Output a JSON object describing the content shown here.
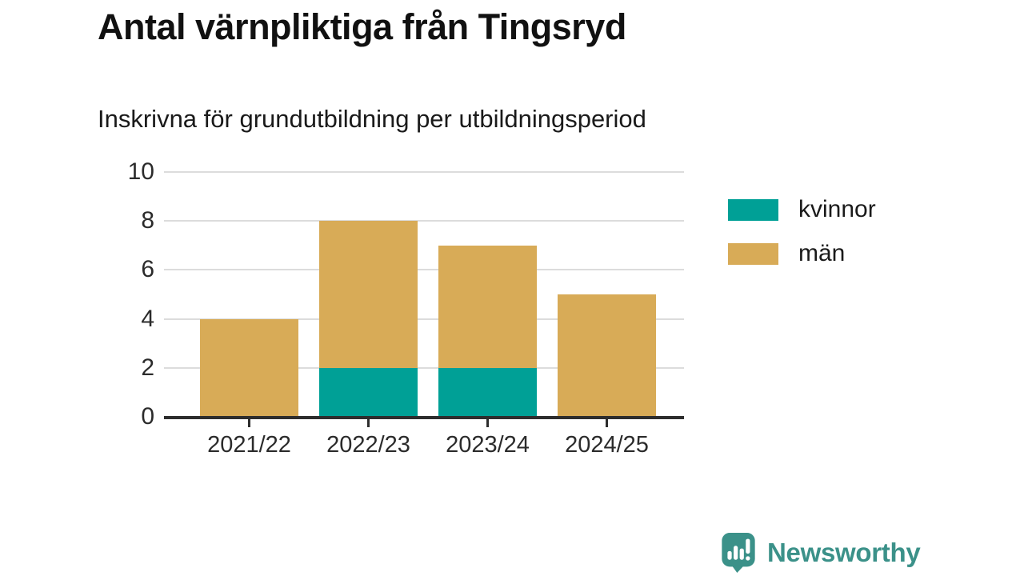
{
  "header": {
    "title": "Antal värnpliktiga från Tingsryd",
    "subtitle": "Inskrivna för grundutbildning per utbildningsperiod"
  },
  "chart_data": {
    "type": "bar",
    "stacked": true,
    "title": "Antal värnpliktiga från Tingsryd",
    "subtitle": "Inskrivna för grundutbildning per utbildningsperiod",
    "categories": [
      "2021/22",
      "2022/23",
      "2023/24",
      "2024/25"
    ],
    "series": [
      {
        "name": "kvinnor",
        "color": "#00a096",
        "values": [
          0,
          2,
          2,
          0
        ]
      },
      {
        "name": "män",
        "color": "#d8ab57",
        "values": [
          4,
          6,
          5,
          5
        ]
      }
    ],
    "totals": [
      4,
      8,
      7,
      5
    ],
    "xlabel": "",
    "ylabel": "",
    "ylim": [
      0,
      10
    ],
    "ytick_step": 2,
    "yticks": [
      0,
      2,
      4,
      6,
      8,
      10
    ],
    "grid": true,
    "gridline_color": "#dcdcdc",
    "axis_color": "#2d2d2d",
    "legend_position": "right"
  },
  "legend": {
    "items": [
      {
        "label": "kvinnor",
        "color": "#00a096",
        "icon": "legend-swatch-kvinnor"
      },
      {
        "label": "män",
        "color": "#d8ab57",
        "icon": "legend-swatch-man"
      }
    ]
  },
  "footer": {
    "brand": "Newsworthy",
    "brand_color": "#3b9189",
    "logo_icon": "newsworthy-speech-bubble-barchart-icon"
  }
}
